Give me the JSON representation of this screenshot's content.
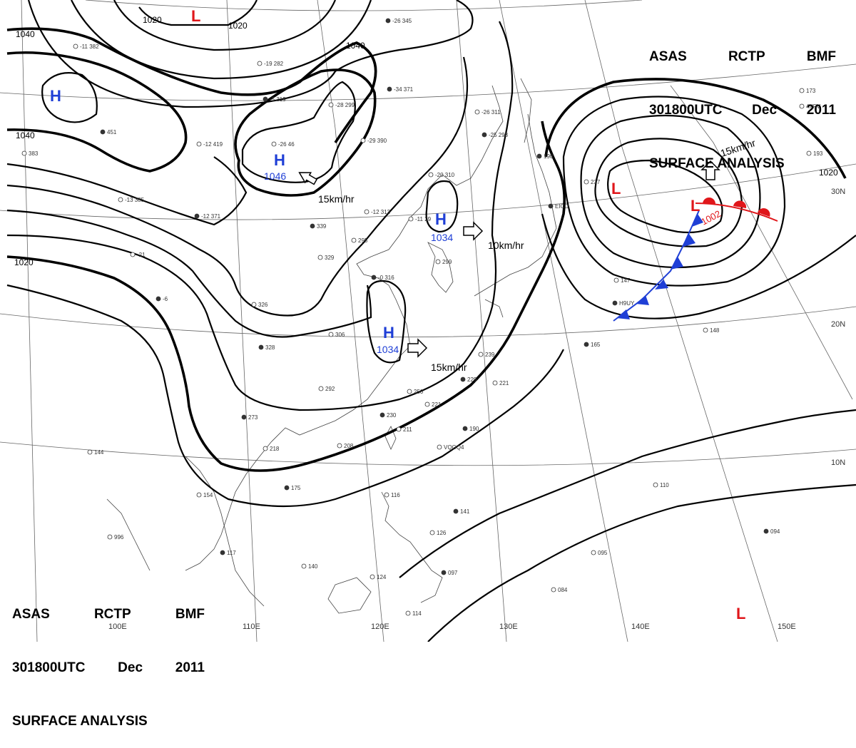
{
  "title": {
    "line1": [
      "ASAS",
      "RCTP",
      "BMF"
    ],
    "line2": [
      "301800UTC",
      "Dec",
      "2011"
    ],
    "line3": "SURFACE ANALYSIS"
  },
  "longitude_labels": [
    "100E",
    "110E",
    "120E",
    "130E",
    "140E",
    "150E"
  ],
  "latitude_labels": [
    "30N",
    "20N",
    "10N"
  ],
  "isobar_labels": [
    "1020",
    "1020",
    "1040",
    "1040",
    "1040",
    "1020",
    "1020"
  ],
  "pressure_systems": [
    {
      "type": "H",
      "color": "#1f3fd6",
      "value": ""
    },
    {
      "type": "H",
      "color": "#1f3fd6",
      "value": "1046"
    },
    {
      "type": "H",
      "color": "#1f3fd6",
      "value": "1034"
    },
    {
      "type": "H",
      "color": "#1f3fd6",
      "value": "1034"
    },
    {
      "type": "L",
      "color": "#e0161a",
      "value": ""
    },
    {
      "type": "L",
      "color": "#e0161a",
      "value": ""
    },
    {
      "type": "L",
      "color": "#e0161a",
      "value": "1002"
    },
    {
      "type": "L",
      "color": "#e0161a",
      "value": ""
    }
  ],
  "motions": [
    "15km/hr",
    "10km/hr",
    "15km/hr",
    "15km/hr"
  ],
  "front_colors": {
    "cold": "#1f3fd6",
    "warm": "#e0161a"
  },
  "station_plots": [
    "-26 345",
    "-11 382",
    "-19 282",
    "-5 319",
    "-28 299",
    "-26 46",
    "-34 371",
    "-29 390",
    "-26 311",
    "-25 298",
    "-20 310",
    "-12 419",
    "451",
    "383",
    "-13 385",
    "-12 371",
    "-12 313",
    "-11 29",
    "339",
    "295",
    "329",
    "-0 316",
    "299",
    "-21",
    "-6",
    "326",
    "306",
    "328",
    "239",
    "250",
    "229",
    "221",
    "292",
    "230",
    "221",
    "211",
    "273",
    "218",
    "208",
    "190",
    "144",
    "154",
    "175",
    "140",
    "116",
    "141",
    "126",
    "114",
    "117",
    "996",
    "124",
    "097",
    "095",
    "084",
    "094",
    "110",
    "148",
    "165",
    "147",
    "237",
    "190",
    "173",
    "VQGQ4",
    "H9UY",
    "4XFV",
    "193",
    "EICD"
  ]
}
